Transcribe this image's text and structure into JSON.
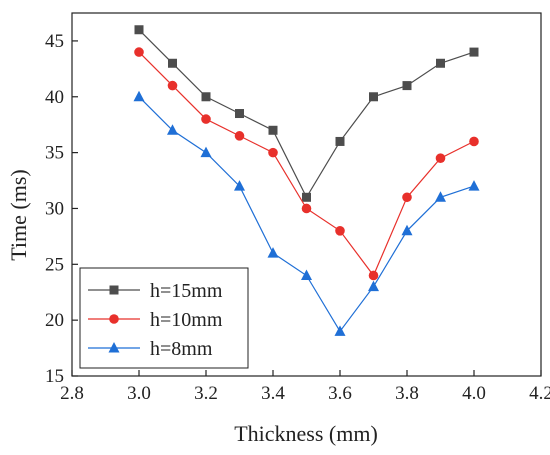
{
  "chart_data": {
    "type": "line",
    "xlabel": "Thickness (mm)",
    "ylabel": "Time (ms)",
    "xlim": [
      2.8,
      4.2
    ],
    "ylim": [
      15,
      47.5
    ],
    "xticks": [
      2.8,
      3.0,
      3.2,
      3.4,
      3.6,
      3.8,
      4.0,
      4.2
    ],
    "xtick_labels": [
      "2.8",
      "3.0",
      "3.2",
      "3.4",
      "3.6",
      "3.8",
      "4.0",
      "4.2"
    ],
    "yticks": [
      15,
      20,
      25,
      30,
      35,
      40,
      45
    ],
    "ytick_labels": [
      "15",
      "20",
      "25",
      "30",
      "35",
      "40",
      "45"
    ],
    "grid": false,
    "legend_position": "bottom-left",
    "x": [
      3.0,
      3.1,
      3.2,
      3.3,
      3.4,
      3.5,
      3.6,
      3.7,
      3.8,
      3.9,
      4.0
    ],
    "series": [
      {
        "name": "h=15mm",
        "color": "#4d4d4d",
        "marker": "square",
        "values": [
          46,
          43,
          40,
          38.5,
          37,
          31,
          36,
          40,
          41,
          43,
          44
        ]
      },
      {
        "name": "h=10mm",
        "color": "#e8302b",
        "marker": "circle",
        "values": [
          44,
          41,
          38,
          36.5,
          35,
          30,
          28,
          24,
          31,
          34.5,
          36
        ]
      },
      {
        "name": "h=8mm",
        "color": "#1f6fd6",
        "marker": "triangle",
        "values": [
          40,
          37,
          35,
          32,
          26,
          24,
          19,
          23,
          28,
          31,
          32
        ]
      }
    ]
  }
}
